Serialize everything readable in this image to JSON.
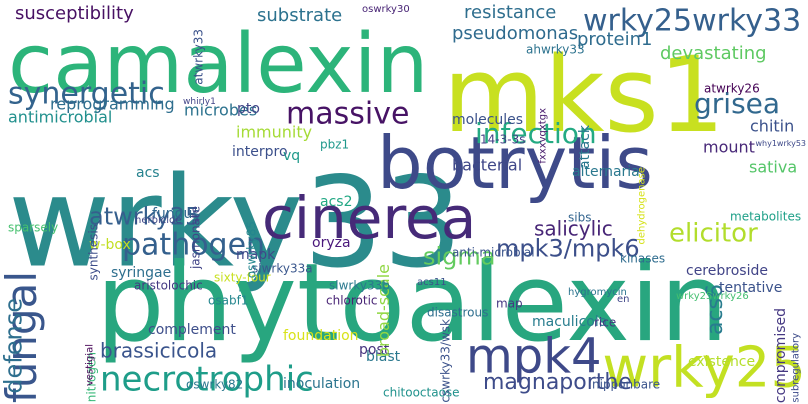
{
  "words": [
    {
      "text": "wrky33",
      "color": "#2b8b8c"
    },
    {
      "text": "phytoalexin",
      "color": "#28a67f"
    },
    {
      "text": "camalexin",
      "color": "#2cb47a"
    },
    {
      "text": "mks1",
      "color": "#c8e020"
    },
    {
      "text": "botrytis",
      "color": "#3e4a89"
    },
    {
      "text": "cinerea",
      "color": "#462a78"
    },
    {
      "text": "wrky25",
      "color": "#c3e022"
    },
    {
      "text": "mpk4",
      "color": "#3e4989"
    },
    {
      "text": "fungal",
      "color": "#39568c"
    },
    {
      "text": "necrotrophic",
      "color": "#1e9d89"
    },
    {
      "text": "pathogen",
      "color": "#34608d"
    },
    {
      "text": "infection",
      "color": "#24aa83"
    },
    {
      "text": "synergetic",
      "color": "#33638d"
    },
    {
      "text": "massive",
      "color": "#471365"
    },
    {
      "text": "grisea",
      "color": "#31688e"
    },
    {
      "text": "wrky25wrky33",
      "color": "#35608d"
    },
    {
      "text": "elicitor",
      "color": "#b2dd2c"
    },
    {
      "text": "mpk3/mpk6",
      "color": "#3c4f8a"
    },
    {
      "text": "defense",
      "color": "#2e6f8e"
    },
    {
      "text": "sigma",
      "color": "#63cb5f"
    },
    {
      "text": "atwrky25",
      "color": "#355f8d"
    },
    {
      "text": "magnaporthe",
      "color": "#3e4c8a"
    },
    {
      "text": "brassicicola",
      "color": "#3a548c"
    },
    {
      "text": "salicylic",
      "color": "#482677"
    },
    {
      "text": "acs6",
      "color": "#287c8e"
    },
    {
      "text": "susceptibility",
      "color": "#471063"
    },
    {
      "text": "substrate",
      "color": "#2c728e"
    },
    {
      "text": "resistance",
      "color": "#2e6e8e"
    },
    {
      "text": "pseudomonas",
      "color": "#2f6b8e"
    },
    {
      "text": "devastating",
      "color": "#5ec962"
    },
    {
      "text": "protein1",
      "color": "#2f6c8e"
    },
    {
      "text": "reprogramming",
      "color": "#2e6e8e"
    },
    {
      "text": "antimicrobial",
      "color": "#21908d"
    },
    {
      "text": "microbes",
      "color": "#2c728e"
    },
    {
      "text": "immunity",
      "color": "#a5db36"
    },
    {
      "text": "chitin",
      "color": "#3b518b"
    },
    {
      "text": "mount",
      "color": "#482878"
    },
    {
      "text": "sativa",
      "color": "#54c568"
    },
    {
      "text": "bacterial",
      "color": "#3f4788"
    },
    {
      "text": "molecules",
      "color": "#3b528b"
    },
    {
      "text": "alternaria",
      "color": "#2a788e"
    },
    {
      "text": "14-3-3s",
      "color": "#433e85"
    },
    {
      "text": "attack",
      "color": "#2a778e"
    },
    {
      "text": "pto",
      "color": "#414487"
    },
    {
      "text": "interpro",
      "color": "#3c508b"
    },
    {
      "text": "vq",
      "color": "#1f998a"
    },
    {
      "text": "acs",
      "color": "#26828e"
    },
    {
      "text": "acs2",
      "color": "#22a884"
    },
    {
      "text": "fungus",
      "color": "#31678e"
    },
    {
      "text": "oryza",
      "color": "#4a187b"
    },
    {
      "text": "mapk",
      "color": "#3f4889"
    },
    {
      "text": "w-box",
      "color": "#c2df23"
    },
    {
      "text": "syringae",
      "color": "#2e6f8e"
    },
    {
      "text": "complement",
      "color": "#3d4e8a"
    },
    {
      "text": "foundation",
      "color": "#d8e219"
    },
    {
      "text": "inoculation",
      "color": "#2b748e"
    },
    {
      "text": "blast",
      "color": "#2a788e"
    },
    {
      "text": "post",
      "color": "#46337e"
    },
    {
      "text": "maculicola",
      "color": "#287d8e"
    },
    {
      "text": "existence",
      "color": "#b5de2b"
    },
    {
      "text": "compromised",
      "color": "#453882"
    },
    {
      "text": "tentative",
      "color": "#3b528b"
    },
    {
      "text": "cerebroside",
      "color": "#414487"
    },
    {
      "text": "metabolites",
      "color": "#1fa088"
    },
    {
      "text": "broad-scale",
      "color": "#90d743"
    },
    {
      "text": "anti-microbial",
      "color": "#3a548c"
    },
    {
      "text": "kinases",
      "color": "#2f6c8e"
    },
    {
      "text": "sibs",
      "color": "#32648e"
    },
    {
      "text": "atwrky26",
      "color": "#440154"
    },
    {
      "text": "ahwrky33",
      "color": "#2c728e"
    },
    {
      "text": "sixty-four",
      "color": "#c8e020"
    },
    {
      "text": "slwrky33b",
      "color": "#2a788e"
    },
    {
      "text": "slwrky33a",
      "color": "#39568c"
    },
    {
      "text": "chlorotic",
      "color": "#482475"
    },
    {
      "text": "osabf1",
      "color": "#24868e"
    },
    {
      "text": "disastrous",
      "color": "#2e6e8e"
    },
    {
      "text": "rice",
      "color": "#453781"
    },
    {
      "text": "nitrogen",
      "color": "#37b878"
    },
    {
      "text": "aristolochic",
      "color": "#443983"
    },
    {
      "text": "synthesis",
      "color": "#3d4d8a"
    },
    {
      "text": "jasmonate",
      "color": "#414487"
    },
    {
      "text": "herbicide",
      "color": "#3f4788"
    },
    {
      "text": "oswrky85",
      "color": "#24868e"
    },
    {
      "text": "oswrky82",
      "color": "#2a778e"
    },
    {
      "text": "sparsely",
      "color": "#46c06f"
    },
    {
      "text": "atwrky33",
      "color": "#3b528b"
    },
    {
      "text": "oswrky30",
      "color": "#482475"
    },
    {
      "text": "acs11",
      "color": "#3b528b"
    },
    {
      "text": "map",
      "color": "#453882"
    },
    {
      "text": "nipponbare",
      "color": "#3a548c"
    },
    {
      "text": "chitooctaose",
      "color": "#20928c"
    },
    {
      "text": "hygromycin",
      "color": "#2b748e"
    },
    {
      "text": "whirly1",
      "color": "#414487"
    },
    {
      "text": "pbz1",
      "color": "#1f988b"
    },
    {
      "text": "vestigial",
      "color": "#440154"
    },
    {
      "text": "cswrky33/wsk",
      "color": "#3b528b"
    },
    {
      "text": "en",
      "color": "#404688"
    },
    {
      "text": "wrky25wrky26",
      "color": "#44bf70"
    },
    {
      "text": "subregulatory",
      "color": "#3e4c8a"
    },
    {
      "text": "fxxxvqxtgx",
      "color": "#481b6d"
    },
    {
      "text": "dehydrogenase",
      "color": "#d5e21a"
    },
    {
      "text": "why1wrky53",
      "color": "#3e4989"
    }
  ]
}
